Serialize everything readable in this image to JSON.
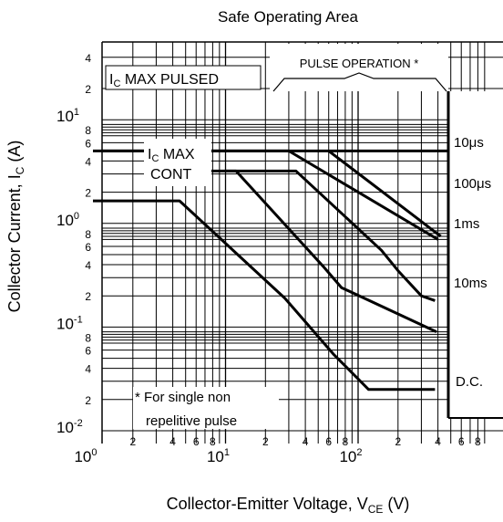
{
  "chart_data": {
    "type": "line",
    "title": "Safe Operating Area",
    "xlabel": "Collector-Emitter Voltage, V",
    "xlabel_sub": "CE",
    "xlabel_unit": "(V)",
    "ylabel": "Collector Current, I",
    "ylabel_sub": "C",
    "ylabel_unit": "(A)",
    "x_scale": "log",
    "y_scale": "log",
    "xlim": [
      1,
      500
    ],
    "ylim": [
      0.01,
      7
    ],
    "grid": true,
    "x_major_ticks": [
      {
        "v": 1,
        "base": "10",
        "exp": "0"
      },
      {
        "v": 10,
        "base": "10",
        "exp": "1"
      },
      {
        "v": 100,
        "base": "10",
        "exp": "2"
      }
    ],
    "x_minor_labels": [
      {
        "v": 2,
        "t": "2"
      },
      {
        "v": 4,
        "t": "4"
      },
      {
        "v": 6,
        "t": "6"
      },
      {
        "v": 8,
        "t": "8"
      },
      {
        "v": 20,
        "t": "2"
      },
      {
        "v": 40,
        "t": "4"
      },
      {
        "v": 60,
        "t": "6"
      },
      {
        "v": 80,
        "t": "8"
      },
      {
        "v": 200,
        "t": "2"
      },
      {
        "v": 400,
        "t": "4"
      },
      {
        "v": 600,
        "t": "6"
      },
      {
        "v": 800,
        "t": "8"
      }
    ],
    "y_major_ticks": [
      {
        "v": 0.01,
        "base": "10",
        "exp": "-2"
      },
      {
        "v": 0.1,
        "base": "10",
        "exp": "-1"
      },
      {
        "v": 1,
        "base": "10",
        "exp": "0"
      },
      {
        "v": 10,
        "base": "10",
        "exp": "1"
      }
    ],
    "y_minor_labels": [
      {
        "v": 0.02,
        "t": "2"
      },
      {
        "v": 0.04,
        "t": "4"
      },
      {
        "v": 0.06,
        "t": "6"
      },
      {
        "v": 0.08,
        "t": "8"
      },
      {
        "v": 0.2,
        "t": "2"
      },
      {
        "v": 0.4,
        "t": "4"
      },
      {
        "v": 0.6,
        "t": "6"
      },
      {
        "v": 0.8,
        "t": "8"
      },
      {
        "v": 2,
        "t": "2"
      },
      {
        "v": 4,
        "t": "4"
      },
      {
        "v": 6,
        "t": "6"
      },
      {
        "v": 8,
        "t": "8"
      },
      {
        "v": 20,
        "t": "2"
      },
      {
        "v": 40,
        "t": "4"
      }
    ],
    "series": [
      {
        "name": "10μs",
        "points": [
          [
            1,
            5.0
          ],
          [
            30,
            5.0
          ],
          [
            400,
            0.7
          ]
        ]
      },
      {
        "name": "100μs",
        "points": [
          [
            60,
            5.0
          ],
          [
            260,
            1.2
          ],
          [
            420,
            0.75
          ]
        ]
      },
      {
        "name": "1ms",
        "points": [
          [
            10,
            3.2
          ],
          [
            34,
            3.2
          ],
          [
            150,
            0.55
          ],
          [
            200,
            0.35
          ],
          [
            300,
            0.2
          ],
          [
            380,
            0.18
          ]
        ]
      },
      {
        "name": "10ms",
        "points": [
          [
            3.6,
            3.2
          ],
          [
            12,
            3.2
          ],
          [
            55,
            0.38
          ],
          [
            75,
            0.24
          ],
          [
            390,
            0.09
          ]
        ]
      },
      {
        "name": "D.C.",
        "points": [
          [
            1,
            1.65
          ],
          [
            4.5,
            1.65
          ],
          [
            28,
            0.19
          ],
          [
            65,
            0.055
          ],
          [
            120,
            0.025
          ],
          [
            380,
            0.025
          ]
        ]
      }
    ],
    "annotations": {
      "ic_max_pulsed": {
        "text": "I",
        "sub": "C",
        "rest": " MAX PULSED"
      },
      "ic_max_cont": {
        "line1": "I",
        "sub": "C",
        "line1_rest": " MAX",
        "line2": "CONT"
      },
      "pulse_operation": "PULSE OPERATION *",
      "footnote_line1": "* For single non",
      "footnote_line2": "repelitive pulse"
    }
  }
}
